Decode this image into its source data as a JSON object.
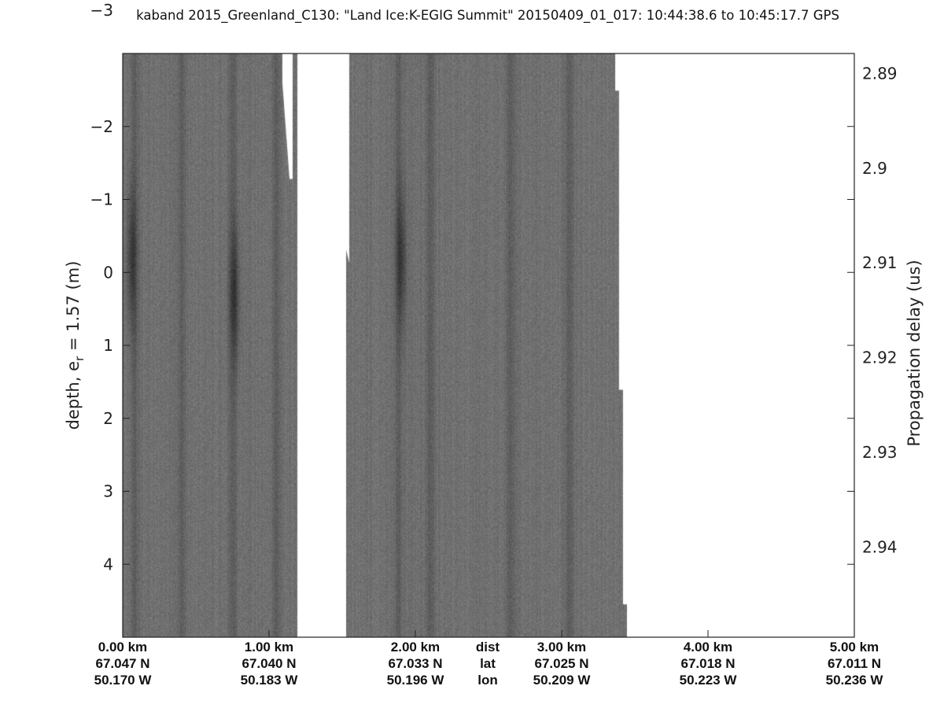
{
  "chart_data": {
    "type": "heatmap",
    "title": "kaband 2015_Greenland_C130: \"Land Ice:K-EGIG Summit\"  20150409_01_017: 10:44:38.6 to 10:45:17.7 GPS",
    "ylabel": "depth, e",
    "ylabel_sub": "r",
    "ylabel_tail": " = 1.57 (m)",
    "y2label": "Propagation delay (us)",
    "ylim": [
      -3,
      5
    ],
    "y_reversed": true,
    "y_ticks": [
      -3,
      -2,
      -1,
      0,
      1,
      2,
      3,
      4
    ],
    "y2_ticks": [
      "2.89",
      "2.9",
      "2.91",
      "2.92",
      "2.93",
      "2.94"
    ],
    "y2_tick_values": [
      2.89,
      2.9,
      2.91,
      2.92,
      2.93,
      2.94
    ],
    "y2lim": [
      2.8879,
      2.9495
    ],
    "xlim_km": [
      0,
      5
    ],
    "x_rows": [
      {
        "label": "dist",
        "ticks": [
          "0.00 km",
          "1.00 km",
          "2.00 km",
          "3.00 km",
          "4.00 km",
          "5.00 km"
        ]
      },
      {
        "label": "lat",
        "ticks": [
          "67.047 N",
          "67.040 N",
          "67.033 N",
          "67.025 N",
          "67.018 N",
          "67.011 N"
        ]
      },
      {
        "label": "lon",
        "ticks": [
          "50.170 W",
          "50.183 W",
          "50.196 W",
          "50.209 W",
          "50.223 W",
          "50.236 W"
        ]
      }
    ],
    "x_tick_km": [
      0,
      1,
      2,
      3,
      4,
      5
    ],
    "colormap": "gray",
    "data_coverage_km_m": [
      [
        [
          0,
          -3
        ],
        [
          1.091,
          -3
        ],
        [
          1.091,
          -2.6
        ],
        [
          1.14,
          -1.28
        ],
        [
          1.161,
          -1.28
        ],
        [
          1.161,
          -3
        ],
        [
          1.194,
          -3
        ],
        [
          1.194,
          5
        ],
        [
          0,
          5
        ]
      ],
      [
        [
          1.527,
          5
        ],
        [
          1.527,
          -0.31
        ],
        [
          1.548,
          -0.13
        ],
        [
          1.548,
          -3
        ],
        [
          3.366,
          -3
        ],
        [
          3.366,
          -2.49
        ],
        [
          3.392,
          -2.49
        ],
        [
          3.392,
          1.61
        ],
        [
          3.419,
          1.61
        ],
        [
          3.419,
          4.55
        ],
        [
          3.446,
          4.55
        ],
        [
          3.446,
          5
        ]
      ]
    ],
    "dark_bands_km": [
      0.08,
      0.4,
      0.75,
      1.05,
      1.88,
      2.1,
      2.65,
      3.05
    ],
    "dark_blobs_km_m": [
      [
        0.76,
        0.3
      ],
      [
        1.9,
        -0.2
      ],
      [
        0.06,
        -0.2
      ]
    ]
  }
}
